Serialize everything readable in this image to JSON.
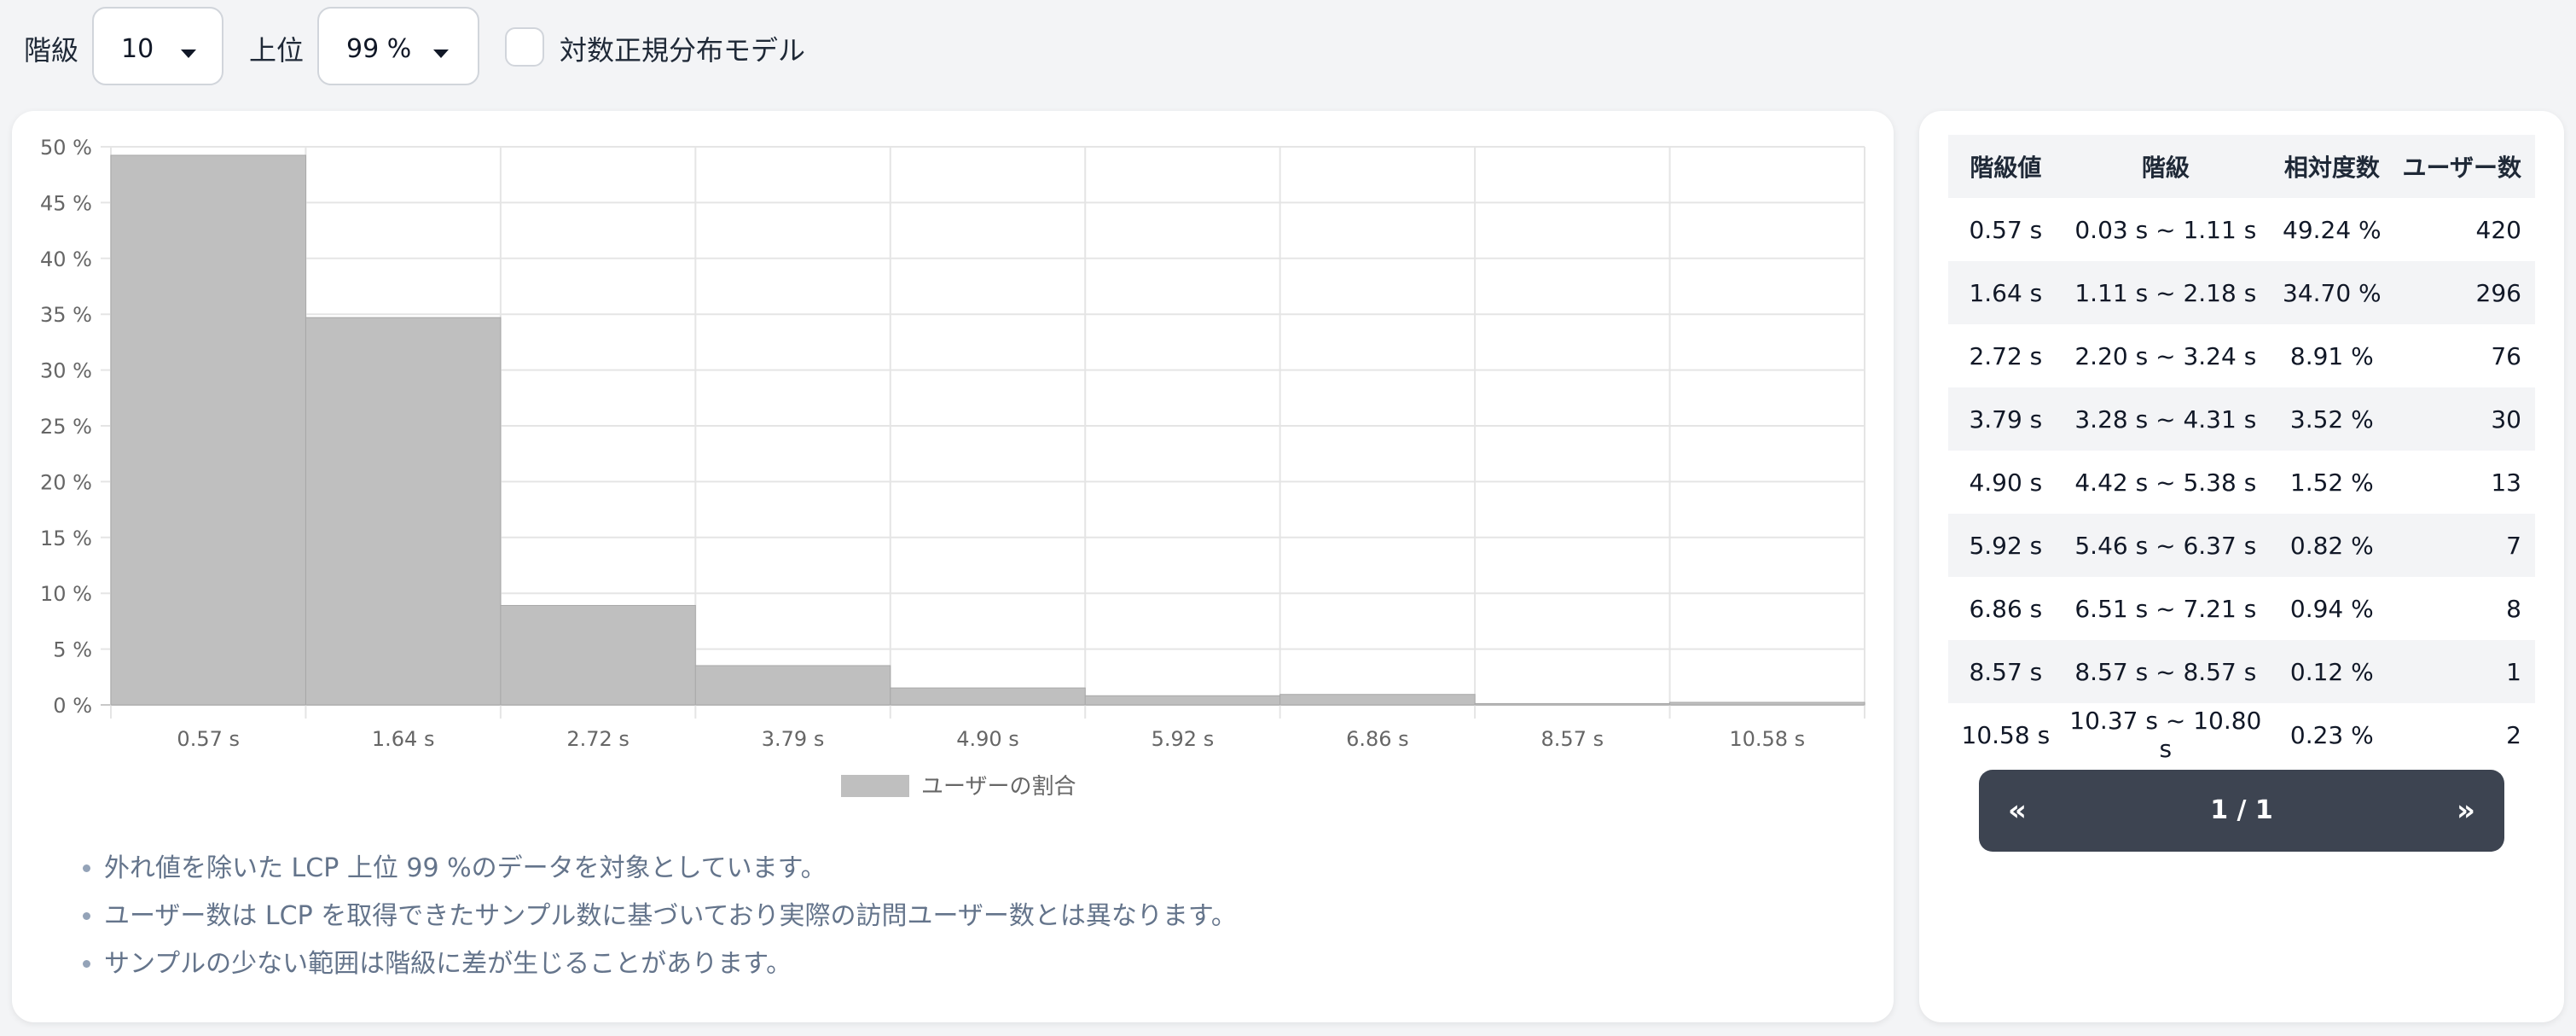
{
  "controls": {
    "class_label": "階級",
    "class_value": "10",
    "top_label": "上位",
    "top_value": "99 %",
    "lognormal_label": "対数正規分布モデル",
    "lognormal_checked": false
  },
  "chart_data": {
    "type": "bar",
    "categories": [
      "0.57 s",
      "1.64 s",
      "2.72 s",
      "3.79 s",
      "4.90 s",
      "5.92 s",
      "6.86 s",
      "8.57 s",
      "10.58 s"
    ],
    "series": [
      {
        "name": "ユーザーの割合",
        "values": [
          49.24,
          34.7,
          8.91,
          3.52,
          1.52,
          0.82,
          0.94,
          0.12,
          0.23
        ],
        "color": "#bfbfbf"
      }
    ],
    "y_ticks": [
      "0 %",
      "5 %",
      "10 %",
      "15 %",
      "20 %",
      "25 %",
      "30 %",
      "35 %",
      "40 %",
      "45 %",
      "50 %"
    ],
    "ylim": [
      0,
      50
    ],
    "y_step": 5,
    "grid": true,
    "legend_position": "bottom"
  },
  "notes": [
    "外れ値を除いた LCP 上位 99 %のデータを対象としています。",
    "ユーザー数は LCP を取得できたサンプル数に基づいており実際の訪問ユーザー数とは異なります。",
    "サンプルの少ない範囲は階級に差が生じることがあります。"
  ],
  "table": {
    "headers": [
      "階級値",
      "階級",
      "相対度数",
      "ユーザー数"
    ],
    "rows": [
      [
        "0.57 s",
        "0.03 s ~ 1.11 s",
        "49.24 %",
        "420"
      ],
      [
        "1.64 s",
        "1.11 s ~ 2.18 s",
        "34.70 %",
        "296"
      ],
      [
        "2.72 s",
        "2.20 s ~ 3.24 s",
        "8.91 %",
        "76"
      ],
      [
        "3.79 s",
        "3.28 s ~ 4.31 s",
        "3.52 %",
        "30"
      ],
      [
        "4.90 s",
        "4.42 s ~ 5.38 s",
        "1.52 %",
        "13"
      ],
      [
        "5.92 s",
        "5.46 s ~ 6.37 s",
        "0.82 %",
        "7"
      ],
      [
        "6.86 s",
        "6.51 s ~ 7.21 s",
        "0.94 %",
        "8"
      ],
      [
        "8.57 s",
        "8.57 s ~ 8.57 s",
        "0.12 %",
        "1"
      ],
      [
        "10.58 s",
        "10.37 s ~ 10.80 s",
        "0.23 %",
        "2"
      ]
    ]
  },
  "pager": {
    "prev": "«",
    "page": "1 / 1",
    "next": "»"
  }
}
